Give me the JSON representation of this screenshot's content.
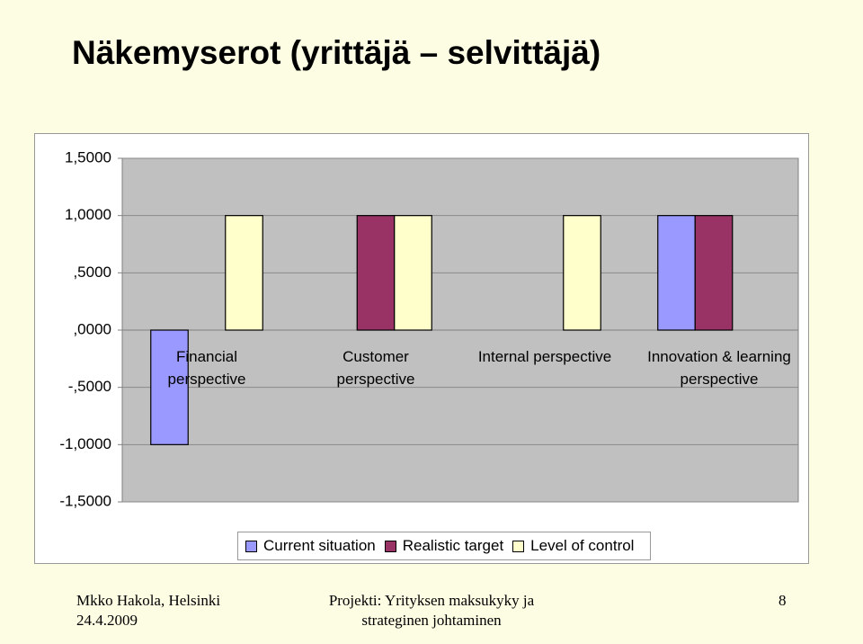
{
  "chart_data": {
    "type": "bar",
    "title": "Näkemyserot (yrittäjä – selvittäjä)",
    "categories": [
      "Financial\nperspective",
      "Customer\nperspective",
      "Internal perspective",
      "Innovation & learning\nperspective"
    ],
    "series": [
      {
        "name": "Current situation",
        "color": "#9999ff",
        "values": [
          -1,
          0,
          0,
          1
        ]
      },
      {
        "name": "Realistic target",
        "color": "#993366",
        "values": [
          0,
          1,
          0,
          1
        ]
      },
      {
        "name": "Level of control",
        "color": "#ffffcc",
        "values": [
          1,
          1,
          1,
          0
        ]
      }
    ],
    "ylim": [
      -1.5,
      1.5
    ],
    "yticks": [
      {
        "value": -1.5,
        "label": "-1,5000"
      },
      {
        "value": -1,
        "label": "-1,0000"
      },
      {
        "value": -0.5,
        "label": "-,5000"
      },
      {
        "value": 0,
        "label": ",0000"
      },
      {
        "value": 0.5,
        "label": ",5000"
      },
      {
        "value": 1,
        "label": "1,0000"
      },
      {
        "value": 1.5,
        "label": "1,5000"
      }
    ],
    "grid": true
  },
  "footer": {
    "author": "Mkko Hakola, Helsinki",
    "date": "24.4.2009",
    "project": "Projekti: Yrityksen maksukyky ja strateginen johtaminen",
    "page": "8"
  }
}
